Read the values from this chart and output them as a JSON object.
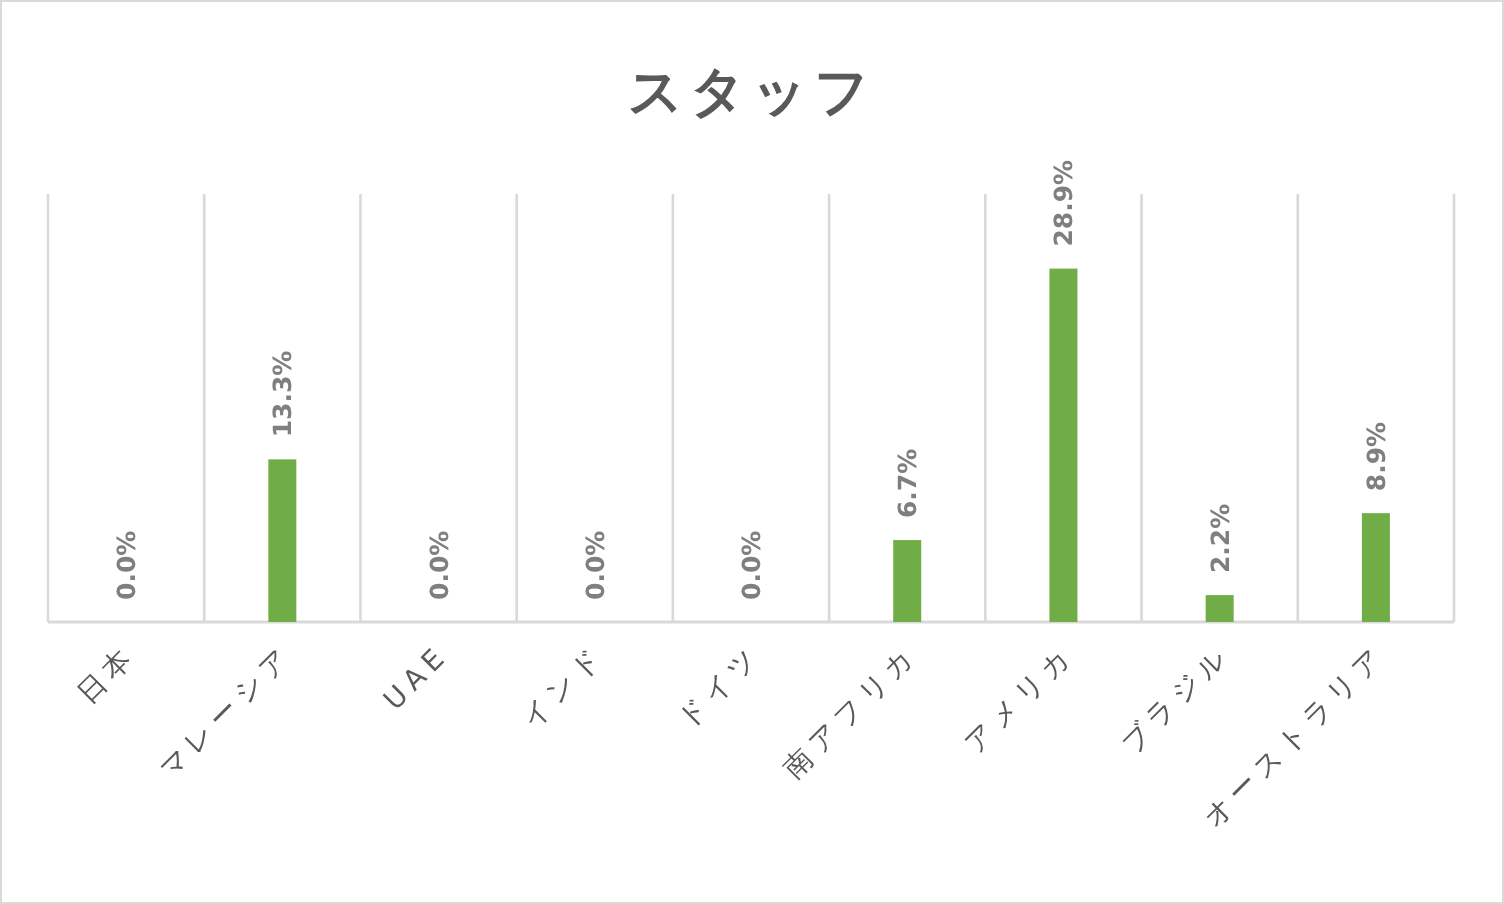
{
  "chart_data": {
    "type": "bar",
    "title": "スタッフ",
    "categories": [
      "日本",
      "マレーシア",
      "UAE",
      "インド",
      "ドイツ",
      "南アフリカ",
      "アメリカ",
      "ブラジル",
      "オーストラリア"
    ],
    "values": [
      0.0,
      13.3,
      0.0,
      0.0,
      0.0,
      6.7,
      28.9,
      2.2,
      8.9
    ],
    "value_labels": [
      "0.0%",
      "13.3%",
      "0.0%",
      "0.0%",
      "0.0%",
      "6.7%",
      "28.9%",
      "2.2%",
      "8.9%"
    ],
    "color": "#70ad47",
    "ylim": [
      0,
      35
    ],
    "grid": "x"
  }
}
